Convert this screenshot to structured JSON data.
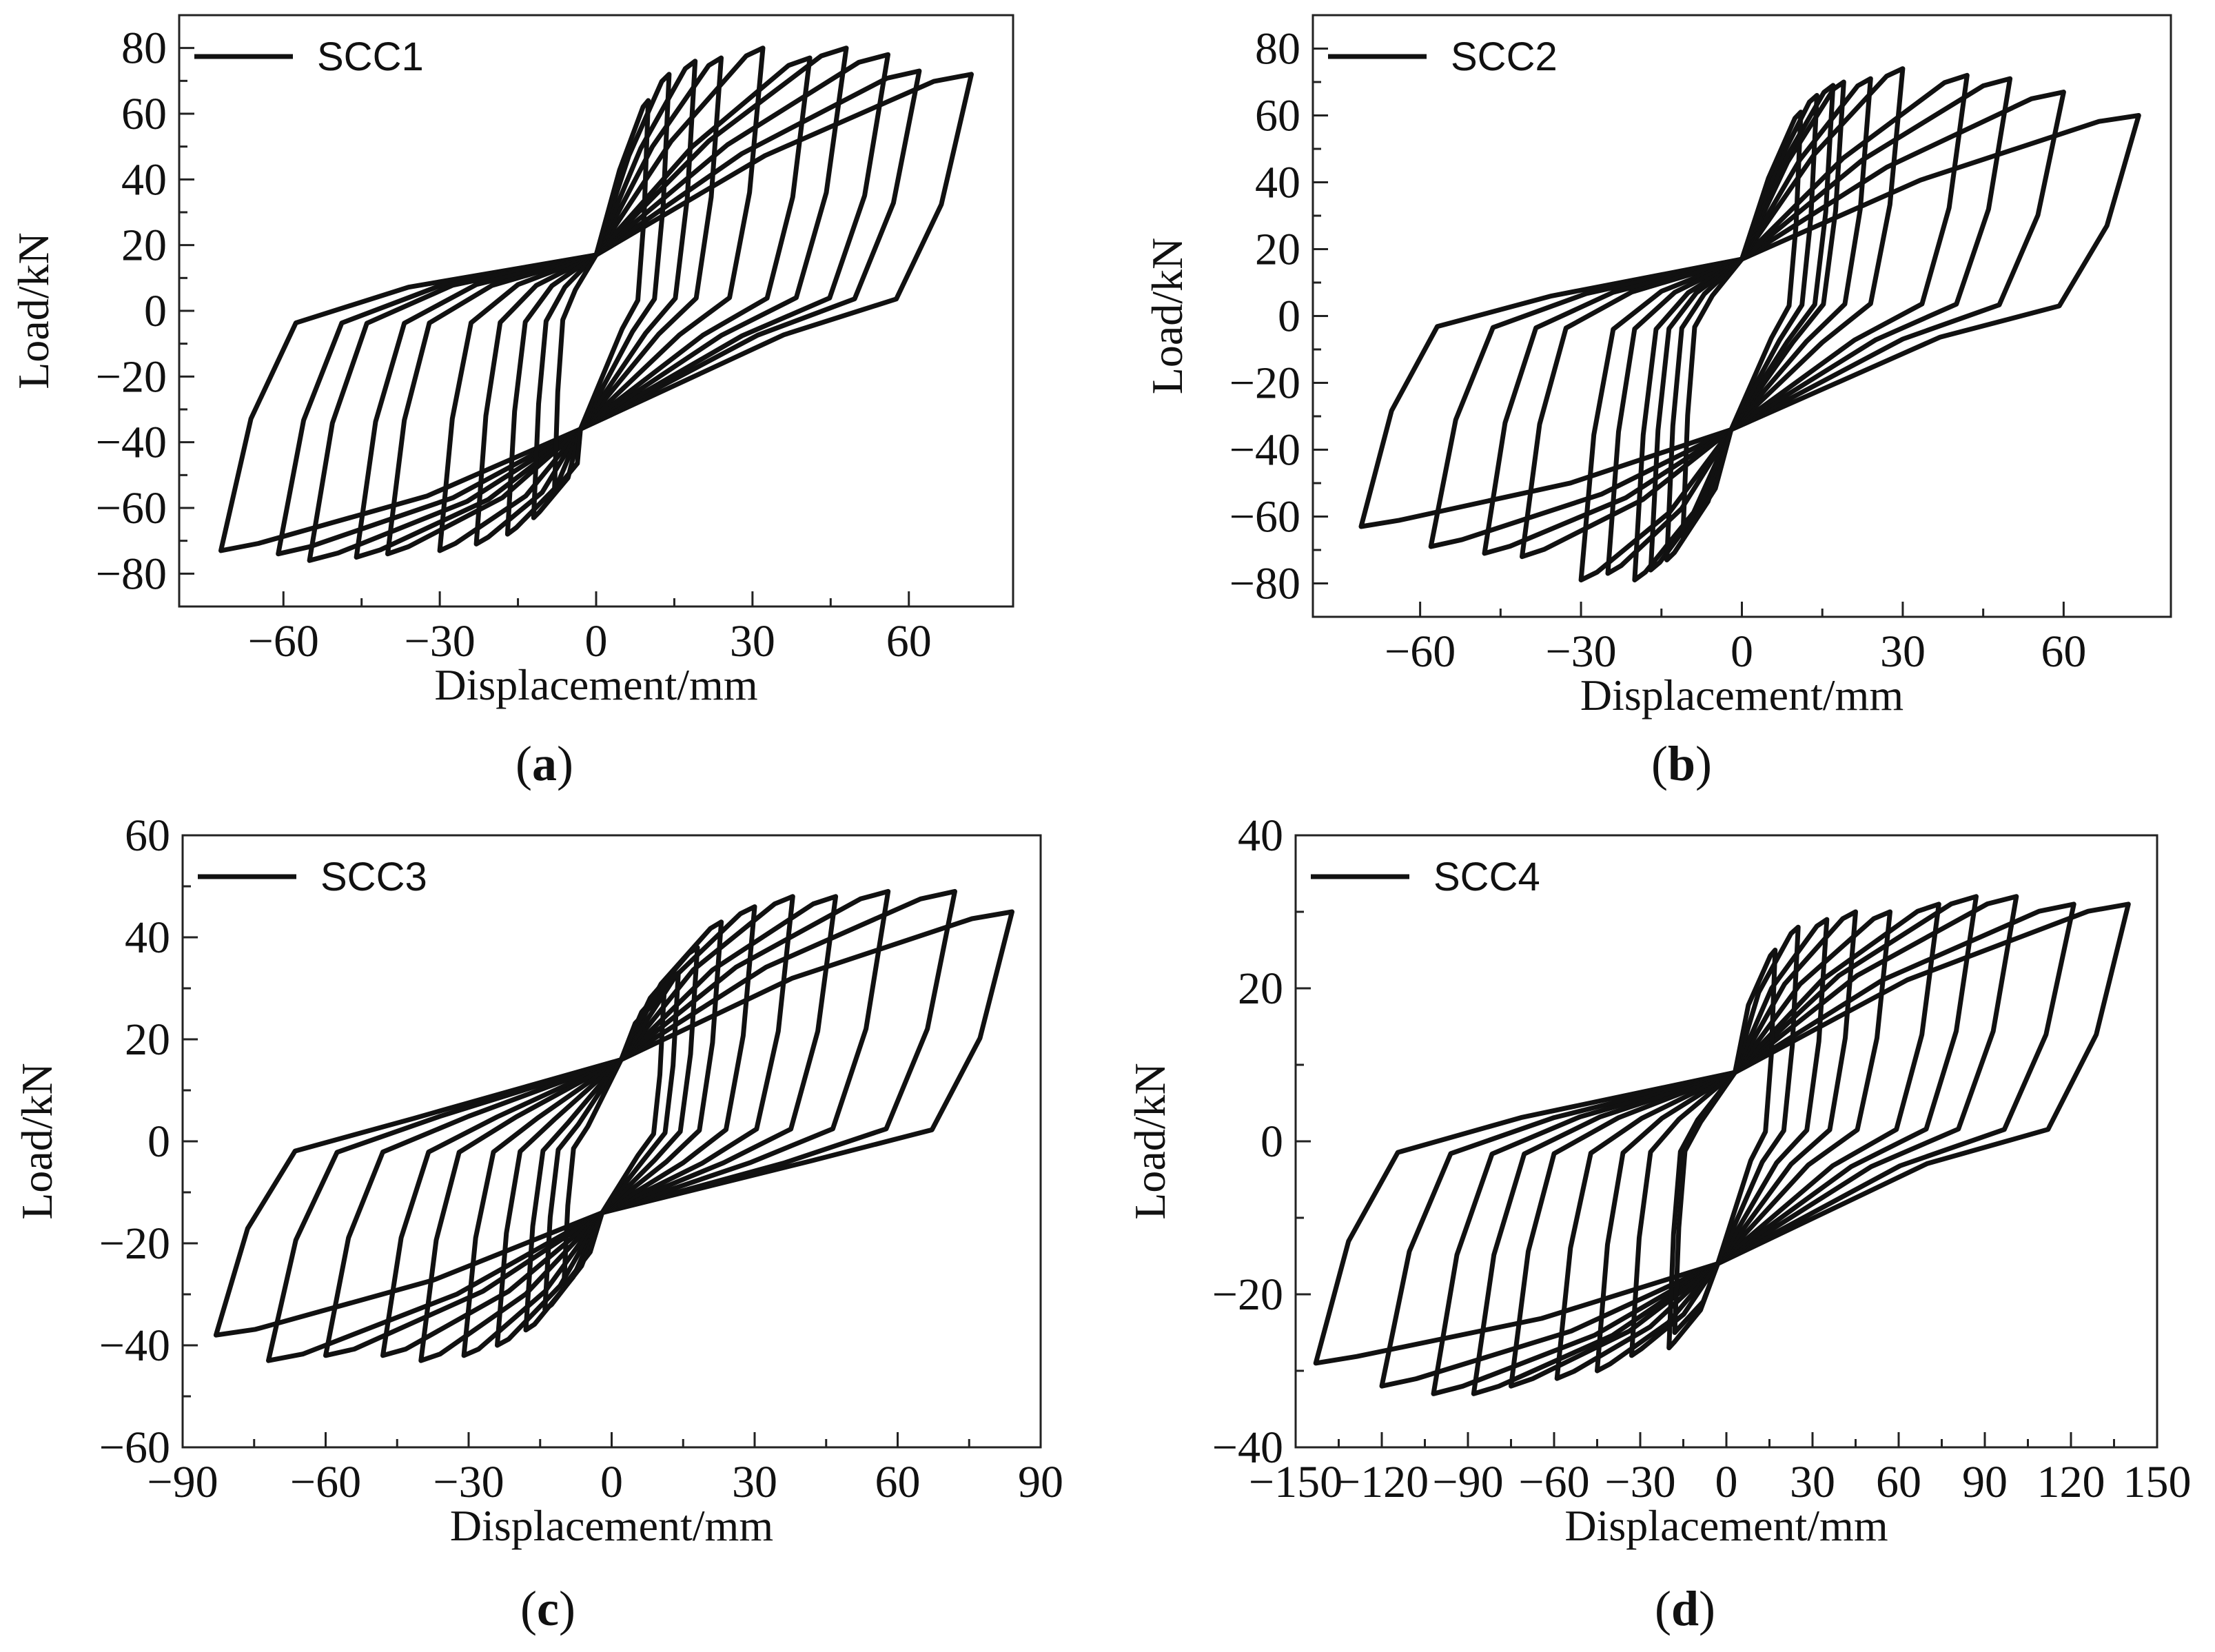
{
  "panel_labels": [
    "(a)",
    "(b)",
    "(c)",
    "(d)"
  ],
  "chart_data": [
    {
      "type": "line",
      "id": "a",
      "panel_letter": "a",
      "legend": "SCC1",
      "xlabel": "Displacement/mm",
      "ylabel": "Load/kN",
      "xlim": [
        -80,
        80
      ],
      "ylim": [
        -90,
        90
      ],
      "xticks": [
        -60,
        -30,
        0,
        30,
        60
      ],
      "xtick_labels": [
        "−60",
        "−30",
        "0",
        "30",
        "60"
      ],
      "yticks": [
        -80,
        -60,
        -40,
        -20,
        0,
        20,
        40,
        60,
        80
      ],
      "ytick_labels": [
        "−80",
        "−60",
        "−40",
        "−20",
        "0",
        "20",
        "40",
        "60",
        "80"
      ],
      "pinch": [
        0,
        17,
        -3,
        -36
      ],
      "loops": [
        {
          "dp": 72,
          "fp": 72,
          "dn": -72,
          "fn": -73
        },
        {
          "dp": 62,
          "fp": 73,
          "dn": -61,
          "fn": -74
        },
        {
          "dp": 56,
          "fp": 78,
          "dn": -55,
          "fn": -76
        },
        {
          "dp": 48,
          "fp": 80,
          "dn": -46,
          "fn": -75
        },
        {
          "dp": 41,
          "fp": 77,
          "dn": -40,
          "fn": -74
        },
        {
          "dp": 32,
          "fp": 80,
          "dn": -30,
          "fn": -73
        },
        {
          "dp": 24,
          "fp": 77,
          "dn": -23,
          "fn": -71
        },
        {
          "dp": 19,
          "fp": 76,
          "dn": -17,
          "fn": -68
        },
        {
          "dp": 14,
          "fp": 72,
          "dn": -12,
          "fn": -63
        },
        {
          "dp": 10,
          "fp": 64,
          "dn": -8,
          "fn": -55
        }
      ]
    },
    {
      "type": "line",
      "id": "b",
      "panel_letter": "b",
      "legend": "SCC2",
      "xlabel": "Displacement/mm",
      "ylabel": "Load/kN",
      "xlim": [
        -80,
        80
      ],
      "ylim": [
        -90,
        90
      ],
      "xticks": [
        -60,
        -30,
        0,
        30,
        60
      ],
      "xtick_labels": [
        "−60",
        "−30",
        "0",
        "30",
        "60"
      ],
      "yticks": [
        -80,
        -60,
        -40,
        -20,
        0,
        20,
        40,
        60,
        80
      ],
      "ytick_labels": [
        "−80",
        "−60",
        "−40",
        "−20",
        "0",
        "20",
        "40",
        "60",
        "80"
      ],
      "pinch": [
        0,
        17,
        -2,
        -34
      ],
      "loops": [
        {
          "dp": 74,
          "fp": 60,
          "dn": -71,
          "fn": -63
        },
        {
          "dp": 60,
          "fp": 67,
          "dn": -58,
          "fn": -69
        },
        {
          "dp": 50,
          "fp": 71,
          "dn": -48,
          "fn": -71
        },
        {
          "dp": 42,
          "fp": 72,
          "dn": -41,
          "fn": -72
        },
        {
          "dp": 30,
          "fp": 74,
          "dn": -30,
          "fn": -79
        },
        {
          "dp": 24,
          "fp": 71,
          "dn": -25,
          "fn": -77
        },
        {
          "dp": 19,
          "fp": 70,
          "dn": -20,
          "fn": -79
        },
        {
          "dp": 17,
          "fp": 69,
          "dn": -17,
          "fn": -76
        },
        {
          "dp": 14,
          "fp": 66,
          "dn": -14,
          "fn": -73
        },
        {
          "dp": 11,
          "fp": 61,
          "dn": -11,
          "fn": -66
        }
      ]
    },
    {
      "type": "line",
      "id": "c",
      "panel_letter": "c",
      "legend": "SCC3",
      "xlabel": "Displacement/mm",
      "ylabel": "Load/kN",
      "xlim": [
        -90,
        90
      ],
      "ylim": [
        -60,
        60
      ],
      "xticks": [
        -90,
        -60,
        -30,
        0,
        30,
        60,
        90
      ],
      "xtick_labels": [
        "−90",
        "−60",
        "−30",
        "0",
        "30",
        "60",
        "90"
      ],
      "yticks": [
        -60,
        -40,
        -20,
        0,
        20,
        40,
        60
      ],
      "ytick_labels": [
        "−60",
        "−40",
        "−20",
        "0",
        "20",
        "40",
        "60"
      ],
      "pinch": [
        2,
        16,
        -2,
        -14
      ],
      "loops": [
        {
          "dp": 84,
          "fp": 45,
          "dn": -83,
          "fn": -38
        },
        {
          "dp": 72,
          "fp": 49,
          "dn": -72,
          "fn": -43
        },
        {
          "dp": 58,
          "fp": 49,
          "dn": -60,
          "fn": -42
        },
        {
          "dp": 47,
          "fp": 48,
          "dn": -48,
          "fn": -42
        },
        {
          "dp": 38,
          "fp": 48,
          "dn": -40,
          "fn": -43
        },
        {
          "dp": 30,
          "fp": 46,
          "dn": -31,
          "fn": -42
        },
        {
          "dp": 23,
          "fp": 43,
          "dn": -24,
          "fn": -40
        },
        {
          "dp": 18,
          "fp": 38,
          "dn": -18,
          "fn": -37
        },
        {
          "dp": 14,
          "fp": 33,
          "dn": -14,
          "fn": -33
        },
        {
          "dp": 11,
          "fp": 29,
          "dn": -10,
          "fn": -28
        }
      ]
    },
    {
      "type": "line",
      "id": "d",
      "panel_letter": "d",
      "legend": "SCC4",
      "xlabel": "Displacement/mm",
      "ylabel": "Load/kN",
      "xlim": [
        -150,
        150
      ],
      "ylim": [
        -40,
        40
      ],
      "xticks": [
        -150,
        -120,
        -90,
        -60,
        -30,
        0,
        30,
        60,
        90,
        120,
        150
      ],
      "xtick_labels": [
        "−150",
        "−120",
        "−90",
        "−60",
        "−30",
        "0",
        "30",
        "60",
        "90",
        "120",
        "150"
      ],
      "yticks": [
        -40,
        -20,
        0,
        20,
        40
      ],
      "ytick_labels": [
        "−40",
        "−20",
        "0",
        "20",
        "40"
      ],
      "pinch": [
        3,
        9,
        -3,
        -16
      ],
      "loops": [
        {
          "dp": 140,
          "fp": 31,
          "dn": -143,
          "fn": -29
        },
        {
          "dp": 121,
          "fp": 31,
          "dn": -120,
          "fn": -32
        },
        {
          "dp": 101,
          "fp": 32,
          "dn": -102,
          "fn": -33
        },
        {
          "dp": 87,
          "fp": 32,
          "dn": -88,
          "fn": -33
        },
        {
          "dp": 74,
          "fp": 31,
          "dn": -75,
          "fn": -32
        },
        {
          "dp": 57,
          "fp": 30,
          "dn": -59,
          "fn": -31
        },
        {
          "dp": 45,
          "fp": 30,
          "dn": -45,
          "fn": -30
        },
        {
          "dp": 35,
          "fp": 29,
          "dn": -33,
          "fn": -28
        },
        {
          "dp": 25,
          "fp": 28,
          "dn": -20,
          "fn": -27
        },
        {
          "dp": 17,
          "fp": 25,
          "dn": -18,
          "fn": -25
        }
      ]
    }
  ]
}
